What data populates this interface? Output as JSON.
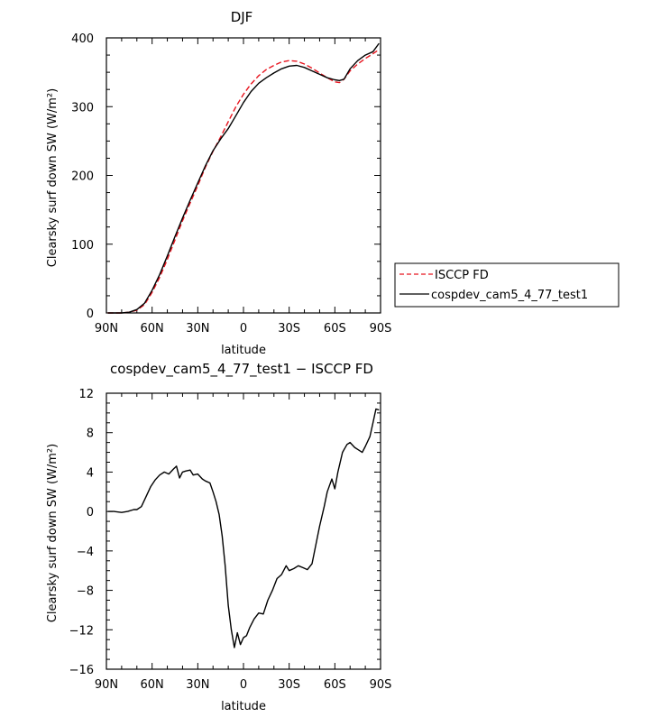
{
  "chart_data": [
    {
      "type": "line",
      "title": "DJF",
      "xlabel": "latitude",
      "ylabel": "Clearsky surf down SW (W/m²)",
      "xlim": [
        90,
        -90
      ],
      "ylim": [
        0,
        400
      ],
      "x_ticks": [
        90,
        60,
        30,
        0,
        -30,
        -60,
        -90
      ],
      "x_tick_labels": [
        "90N",
        "60N",
        "30N",
        "0",
        "30S",
        "60S",
        "90S"
      ],
      "y_ticks": [
        0,
        100,
        200,
        300,
        400
      ],
      "y_tick_labels": [
        "0",
        "100",
        "200",
        "300",
        "400"
      ],
      "legend": {
        "placement": "right",
        "entries": [
          "ISCCP FD",
          "cospdev_cam5_4_77_test1"
        ]
      },
      "series": [
        {
          "name": "ISCCP FD",
          "color": "#e8141e",
          "dash": "dashed",
          "x": [
            89,
            85,
            80,
            75,
            70,
            65,
            60,
            55,
            50,
            45,
            40,
            35,
            30,
            25,
            20,
            15,
            10,
            5,
            0,
            -5,
            -10,
            -15,
            -20,
            -25,
            -30,
            -35,
            -40,
            -45,
            -50,
            -55,
            -60,
            -63,
            -66,
            -70,
            -75,
            -80,
            -85,
            -89
          ],
          "y": [
            0,
            0,
            0,
            1,
            4,
            12,
            30,
            52,
            78,
            106,
            134,
            160,
            185,
            212,
            235,
            256,
            278,
            300,
            318,
            333,
            345,
            354,
            360,
            365,
            367,
            366,
            362,
            356,
            349,
            342,
            336,
            335,
            340,
            352,
            362,
            370,
            377,
            383
          ]
        },
        {
          "name": "cospdev_cam5_4_77_test1",
          "color": "#000000",
          "dash": "solid",
          "x": [
            89,
            85,
            80,
            75,
            70,
            65,
            60,
            55,
            50,
            45,
            40,
            35,
            30,
            25,
            20,
            15,
            10,
            5,
            0,
            -5,
            -10,
            -15,
            -20,
            -25,
            -30,
            -35,
            -40,
            -45,
            -50,
            -55,
            -60,
            -63,
            -66,
            -70,
            -75,
            -80,
            -85,
            -89
          ],
          "y": [
            0,
            0,
            0,
            1,
            5,
            14,
            33,
            56,
            83,
            111,
            138,
            164,
            189,
            214,
            236,
            253,
            268,
            287,
            306,
            322,
            334,
            342,
            349,
            355,
            359,
            360,
            357,
            352,
            347,
            342,
            339,
            338,
            340,
            355,
            367,
            375,
            380,
            392
          ]
        }
      ]
    },
    {
      "type": "line",
      "title": "cospdev_cam5_4_77_test1 − ISCCP FD",
      "xlabel": "latitude",
      "ylabel": "Clearsky surf down SW (W/m²)",
      "xlim": [
        90,
        -90
      ],
      "ylim": [
        -16,
        12
      ],
      "x_ticks": [
        90,
        60,
        30,
        0,
        -30,
        -60,
        -90
      ],
      "x_tick_labels": [
        "90N",
        "60N",
        "30N",
        "0",
        "30S",
        "60S",
        "90S"
      ],
      "y_ticks": [
        12,
        8,
        4,
        0,
        -4,
        -8,
        -12,
        -16
      ],
      "y_tick_labels": [
        "12",
        "8",
        "4",
        "0",
        "−4",
        "−8",
        "−12",
        "−16"
      ],
      "series": [
        {
          "color": "#000000",
          "dash": "solid",
          "x": [
            89,
            85,
            80,
            76,
            72,
            70,
            67,
            64,
            61,
            58,
            55,
            52,
            49,
            46,
            44,
            42,
            40,
            38,
            35,
            33,
            30,
            27,
            25,
            22,
            20,
            18,
            16,
            14,
            12,
            10,
            8,
            6,
            4,
            2,
            0,
            -2,
            -4,
            -7,
            -10,
            -13,
            -16,
            -19,
            -22,
            -25,
            -28,
            -30,
            -33,
            -36,
            -39,
            -42,
            -45,
            -48,
            -50,
            -53,
            -55,
            -58,
            -60,
            -62,
            -65,
            -68,
            -70,
            -73,
            -75,
            -78,
            -80,
            -83,
            -85,
            -87,
            -89
          ],
          "y": [
            0,
            0,
            -0.1,
            0,
            0.2,
            0.2,
            0.5,
            1.5,
            2.5,
            3.2,
            3.7,
            4,
            3.8,
            4.3,
            4.6,
            3.4,
            4,
            4.1,
            4.2,
            3.7,
            3.8,
            3.3,
            3.1,
            2.9,
            2,
            1,
            -0.3,
            -2.5,
            -5.5,
            -9.5,
            -12,
            -13.8,
            -12.3,
            -13.5,
            -12.8,
            -12.6,
            -11.8,
            -10.9,
            -10.3,
            -10.4,
            -9,
            -8,
            -6.8,
            -6.4,
            -5.5,
            -6,
            -5.8,
            -5.5,
            -5.7,
            -5.9,
            -5.3,
            -3,
            -1.5,
            0.5,
            2,
            3.3,
            2.3,
            4,
            6,
            6.8,
            7,
            6.5,
            6.3,
            6,
            6.6,
            7.6,
            9,
            10.4,
            10.3
          ]
        }
      ]
    }
  ]
}
